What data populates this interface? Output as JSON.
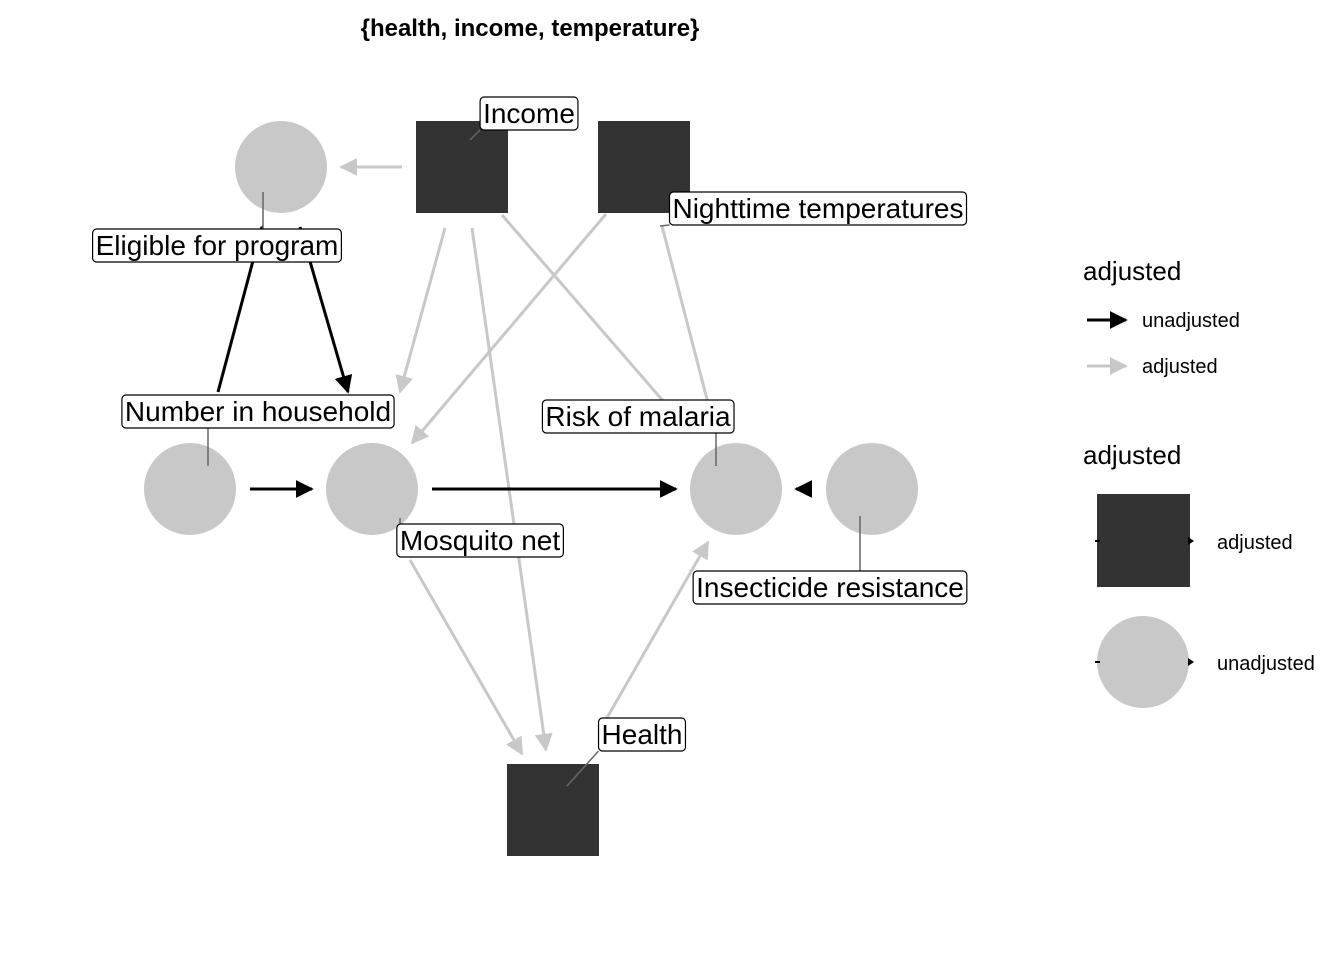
{
  "title": "{health, income, temperature}",
  "colors": {
    "adjusted_node": "#333333",
    "unadjusted_node": "#c8c8c8",
    "unadjusted_edge": "#000000",
    "adjusted_edge": "#c8c8c8"
  },
  "nodes": [
    {
      "id": "income",
      "label": "Income",
      "adjusted": "adjusted"
    },
    {
      "id": "temp",
      "label": "Nighttime temperatures",
      "adjusted": "adjusted"
    },
    {
      "id": "eligible",
      "label": "Eligible for program",
      "adjusted": "unadjusted"
    },
    {
      "id": "household",
      "label": "Number in household",
      "adjusted": "unadjusted"
    },
    {
      "id": "net",
      "label": "Mosquito net",
      "adjusted": "unadjusted"
    },
    {
      "id": "malaria",
      "label": "Risk of malaria",
      "adjusted": "unadjusted"
    },
    {
      "id": "resistance",
      "label": "Insecticide resistance",
      "adjusted": "unadjusted"
    },
    {
      "id": "health",
      "label": "Health",
      "adjusted": "adjusted"
    }
  ],
  "edges": [
    {
      "from": "income",
      "to": "eligible",
      "adjusted": "adjusted"
    },
    {
      "from": "income",
      "to": "net",
      "adjusted": "adjusted"
    },
    {
      "from": "income",
      "to": "health",
      "adjusted": "adjusted"
    },
    {
      "from": "income",
      "to": "malaria",
      "adjusted": "adjusted"
    },
    {
      "from": "temp",
      "to": "net",
      "adjusted": "adjusted"
    },
    {
      "from": "temp",
      "to": "malaria",
      "adjusted": "adjusted"
    },
    {
      "from": "household",
      "to": "eligible",
      "adjusted": "unadjusted"
    },
    {
      "from": "eligible",
      "to": "net",
      "adjusted": "unadjusted"
    },
    {
      "from": "household",
      "to": "net",
      "adjusted": "unadjusted"
    },
    {
      "from": "net",
      "to": "malaria",
      "adjusted": "unadjusted"
    },
    {
      "from": "resistance",
      "to": "malaria",
      "adjusted": "unadjusted"
    },
    {
      "from": "net",
      "to": "health",
      "adjusted": "adjusted"
    },
    {
      "from": "health",
      "to": "malaria",
      "adjusted": "adjusted"
    }
  ],
  "legend": {
    "edge_title": "adjusted",
    "edge_items": [
      {
        "label": "unadjusted",
        "adjusted": "unadjusted"
      },
      {
        "label": "adjusted",
        "adjusted": "adjusted"
      }
    ],
    "node_title": "adjusted",
    "node_items": [
      {
        "label": "adjusted",
        "adjusted": "adjusted"
      },
      {
        "label": "unadjusted",
        "adjusted": "unadjusted"
      }
    ]
  }
}
